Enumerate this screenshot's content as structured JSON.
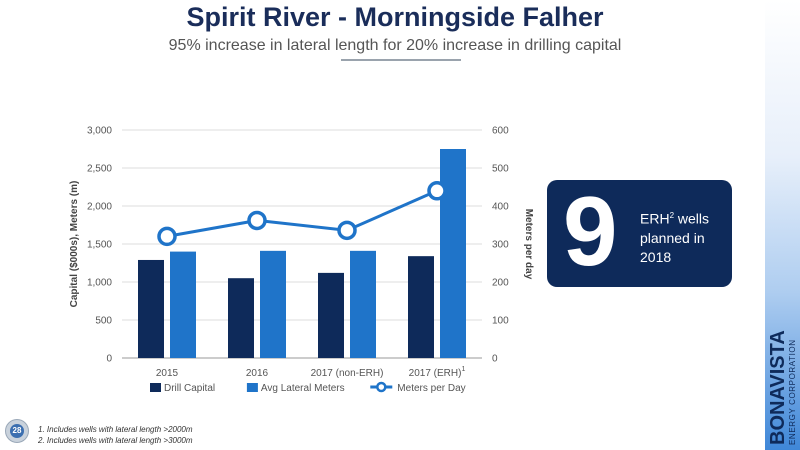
{
  "header": {
    "title": "Spirit River - Morningside Falher",
    "subtitle": "95% increase in lateral length for 20% increase in drilling capital"
  },
  "chart_data": {
    "type": "bar",
    "categories": [
      "2015",
      "2016",
      "2017 (non-ERH)",
      "2017 (ERH)"
    ],
    "category_superscripts": [
      "",
      "",
      "",
      "1"
    ],
    "series": [
      {
        "name": "Drill Capital",
        "type": "bar",
        "axis": "left",
        "color": "#0e2a5a",
        "values": [
          1290,
          1050,
          1120,
          1340
        ]
      },
      {
        "name": "Avg Lateral Meters",
        "type": "bar",
        "axis": "left",
        "color": "#1f74c9",
        "values": [
          1400,
          1410,
          1410,
          2750
        ]
      },
      {
        "name": "Meters per Day",
        "type": "line",
        "axis": "right",
        "color": "#1f74c9",
        "values": [
          320,
          362,
          336,
          440
        ]
      }
    ],
    "y_left": {
      "label": "Capital ($000s), Meters (m)",
      "min": 0,
      "max": 3000,
      "ticks": [
        "0",
        "500",
        "1,000",
        "1,500",
        "2,000",
        "2,500",
        "3,000"
      ]
    },
    "y_right": {
      "label": "Meters per day",
      "min": 0,
      "max": 600,
      "ticks": [
        "0",
        "100",
        "200",
        "300",
        "400",
        "500",
        "600"
      ]
    },
    "grid": true,
    "legend_position": "bottom"
  },
  "callout": {
    "number": "9",
    "line1": "ERH",
    "sup": "2",
    "line1_rest": " wells planned in 2018"
  },
  "logo": {
    "name": "BONAVISTA",
    "tagline": "ENERGY CORPORATION"
  },
  "page_number": "28",
  "footnotes": [
    "1. Includes wells with lateral length >2000m",
    "2. Includes wells with lateral length >3000m"
  ]
}
